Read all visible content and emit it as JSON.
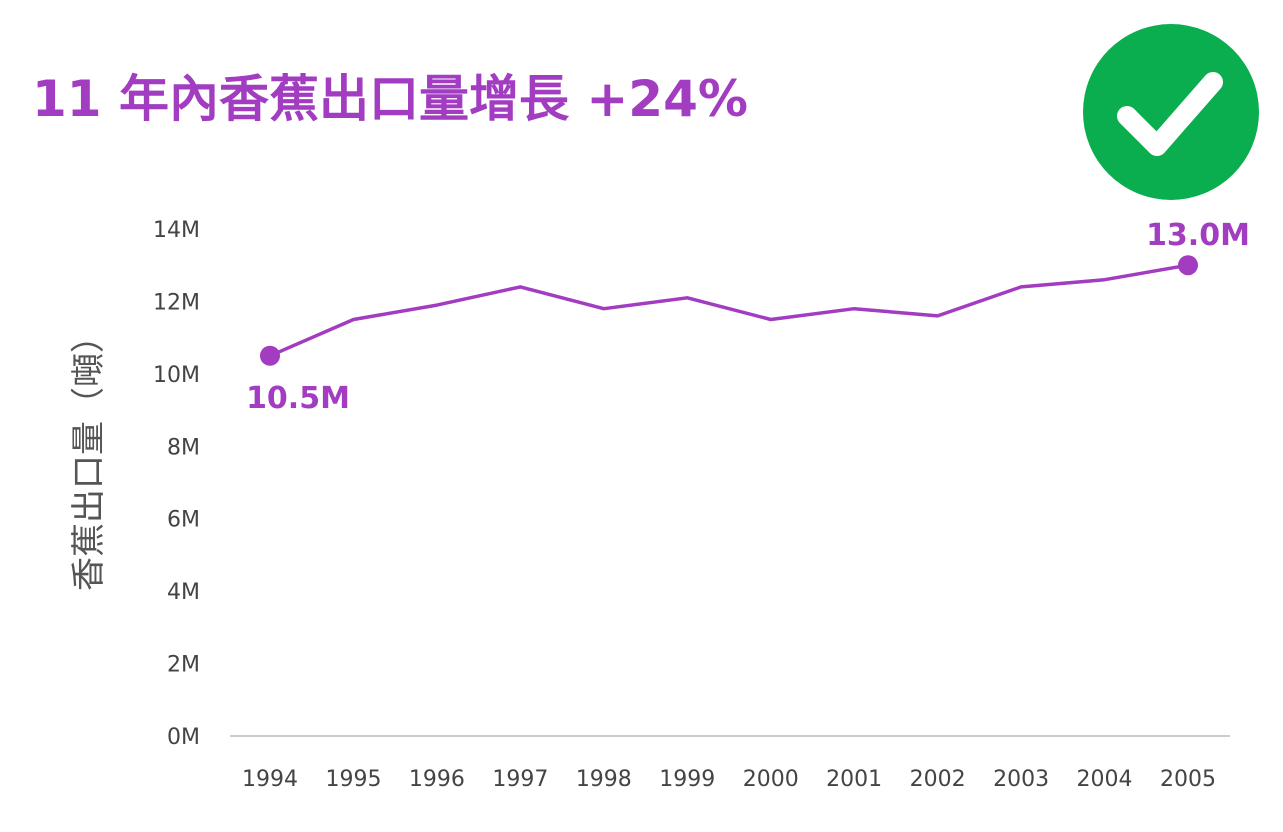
{
  "colors": {
    "accent": "#A23CC0",
    "check_badge": "#0BAE4F",
    "axis": "#cccccc"
  },
  "icon": "checkmark-badge-icon",
  "chart_data": {
    "type": "line",
    "title": "11 年內香蕉出口量增長 +24%",
    "xlabel": "",
    "ylabel": "香蕉出口量（噸）",
    "x": [
      "1994",
      "1995",
      "1996",
      "1997",
      "1998",
      "1999",
      "2000",
      "2001",
      "2002",
      "2003",
      "2004",
      "2005"
    ],
    "series": [
      {
        "values": [
          10.5,
          11.5,
          11.9,
          12.4,
          11.8,
          12.1,
          11.5,
          11.8,
          11.6,
          12.4,
          12.6,
          13.0
        ]
      }
    ],
    "yticks": [
      "0M",
      "2M",
      "4M",
      "6M",
      "8M",
      "10M",
      "12M",
      "14M"
    ],
    "ylim": [
      0,
      14
    ],
    "grid": false,
    "legend": "none",
    "annotations": [
      {
        "index": 0,
        "text": "10.5M"
      },
      {
        "index": 11,
        "text": "13.0M"
      }
    ]
  }
}
